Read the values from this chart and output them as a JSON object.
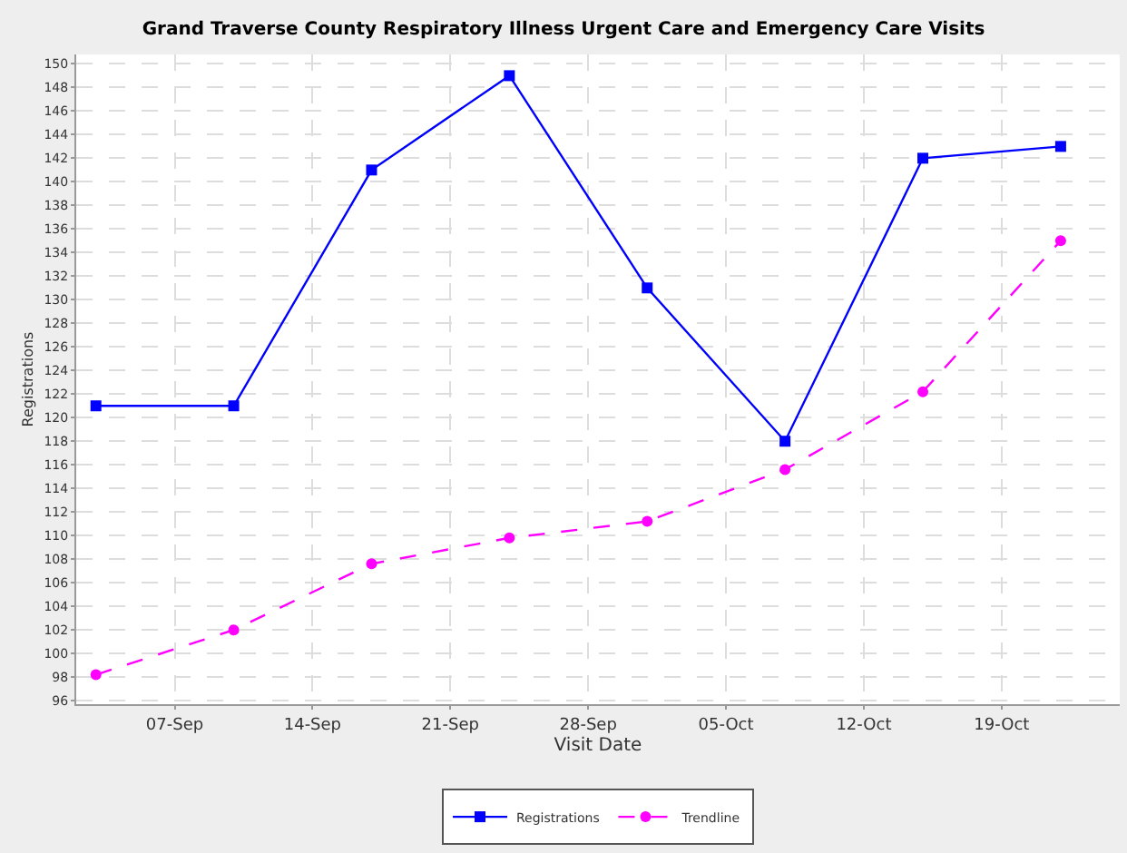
{
  "chart_data": {
    "type": "line",
    "title": "Grand Traverse County Respiratory Illness Urgent Care and Emergency Care Visits",
    "xlabel": "Visit Date",
    "ylabel": "Registrations",
    "x": [
      "--09-03",
      "--09-10",
      "--09-17",
      "--09-24",
      "--10-01",
      "--10-08",
      "--10-15",
      "--10-22"
    ],
    "series": [
      {
        "name": "Registrations",
        "color": "#0000ff",
        "marker": "square",
        "line_style": "solid",
        "values": [
          121,
          121,
          141,
          149,
          131,
          118,
          142,
          143
        ]
      },
      {
        "name": "Trendline",
        "color": "#ff00ff",
        "marker": "circle",
        "line_style": "dashed",
        "values": [
          98.2,
          102.0,
          107.6,
          109.8,
          111.2,
          115.6,
          122.2,
          135.0
        ]
      }
    ],
    "xlim": [
      "--09-02",
      "--10-25"
    ],
    "xticks": [
      {
        "value": "--09-07",
        "label": "07-Sep"
      },
      {
        "value": "--09-14",
        "label": "14-Sep"
      },
      {
        "value": "--09-21",
        "label": "21-Sep"
      },
      {
        "value": "--09-28",
        "label": "28-Sep"
      },
      {
        "value": "--10-05",
        "label": "05-Oct"
      },
      {
        "value": "--10-12",
        "label": "12-Oct"
      },
      {
        "value": "--10-19",
        "label": "19-Oct"
      }
    ],
    "ylim": [
      95.7,
      150.8
    ],
    "yticks": [
      96,
      98,
      100,
      102,
      104,
      106,
      108,
      110,
      112,
      114,
      116,
      118,
      120,
      122,
      124,
      126,
      128,
      130,
      132,
      134,
      136,
      138,
      140,
      142,
      144,
      146,
      148,
      150
    ],
    "grid": true,
    "legend": "bottom"
  }
}
